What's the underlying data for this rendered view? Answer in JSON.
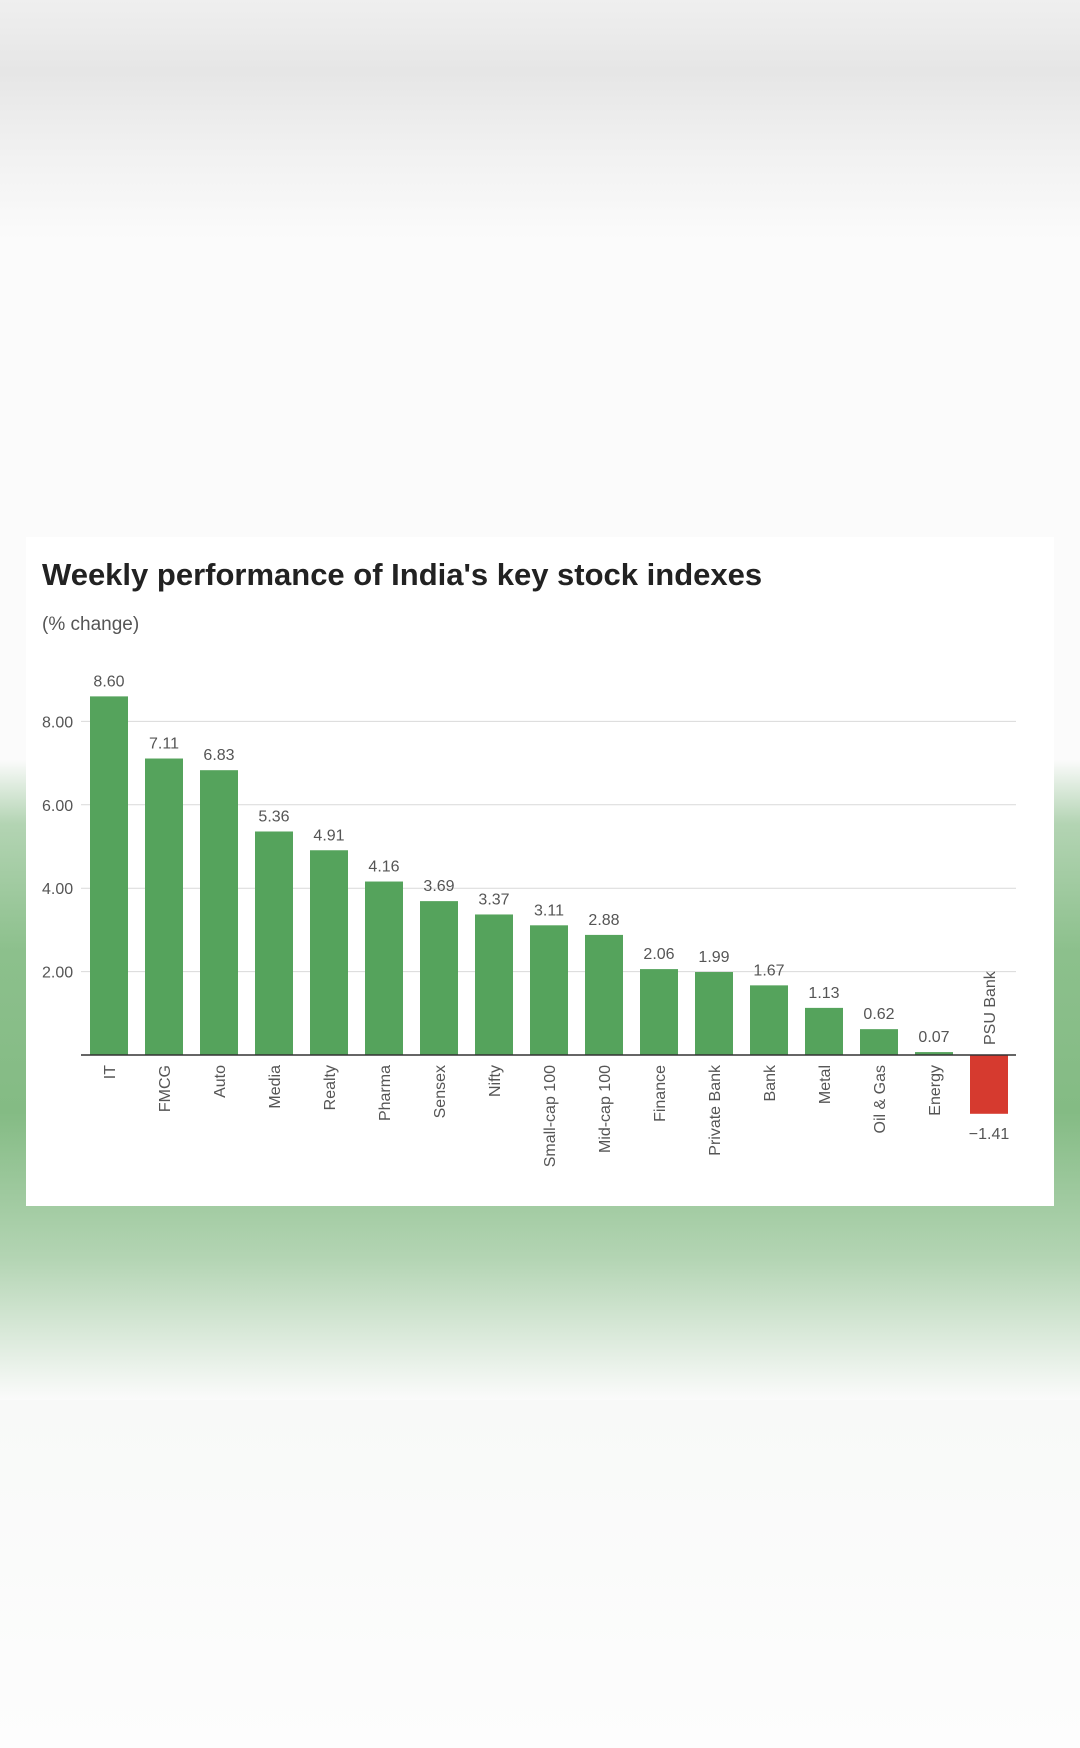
{
  "chart_data": {
    "type": "bar",
    "title": "Weekly performance of India's key stock indexes",
    "subtitle": "(% change)",
    "xlabel": "",
    "ylabel": "",
    "categories": [
      "IT",
      "FMCG",
      "Auto",
      "Media",
      "Realty",
      "Pharma",
      "Sensex",
      "Nifty",
      "Small-cap 100",
      "Mid-cap 100",
      "Finance",
      "Private Bank",
      "Bank",
      "Metal",
      "Oil & Gas",
      "Energy",
      "PSU Bank"
    ],
    "values": [
      8.6,
      7.11,
      6.83,
      5.36,
      4.91,
      4.16,
      3.69,
      3.37,
      3.11,
      2.88,
      2.06,
      1.99,
      1.67,
      1.13,
      0.62,
      0.07,
      -1.41
    ],
    "value_labels": [
      "8.60",
      "7.11",
      "6.83",
      "5.36",
      "4.91",
      "4.16",
      "3.69",
      "3.37",
      "3.11",
      "2.88",
      "2.06",
      "1.99",
      "1.67",
      "1.13",
      "0.62",
      "0.07",
      "−1.41"
    ],
    "yticks": [
      2,
      4,
      6,
      8
    ],
    "ytick_labels": [
      "2.00",
      "4.00",
      "6.00",
      "8.00"
    ],
    "ylim": [
      -1.41,
      8.6
    ],
    "grid": true,
    "legend": "none",
    "colors": {
      "positive": "#55a35c",
      "negative": "#d63a2f",
      "grid": "#d9d9d9",
      "baseline": "#333333"
    }
  }
}
